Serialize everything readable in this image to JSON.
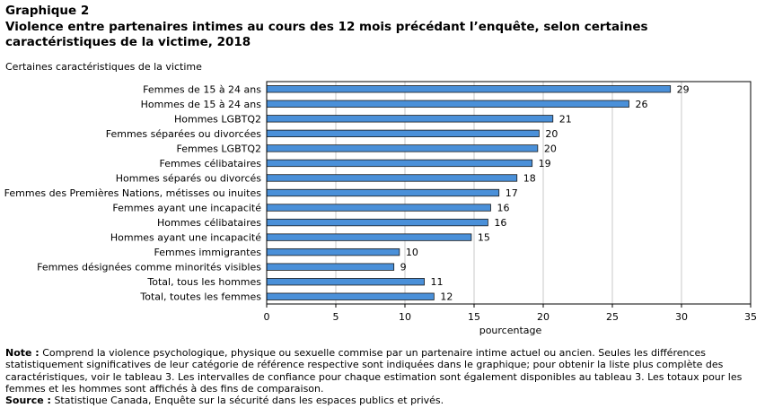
{
  "header": {
    "figure_label": "Graphique 2",
    "title": "Violence  entre partenaires intimes au cours des 12 mois précédant l’enquête, selon certaines caractéristiques de la victime, 2018"
  },
  "chart_data": {
    "type": "bar",
    "orientation": "horizontal",
    "ylabel": "Certaines caractéristiques de la victime",
    "xlabel": "pourcentage",
    "categories": [
      "Femmes de 15 à 24 ans",
      "Hommes de 15 à 24 ans",
      "Hommes LGBTQ2",
      "Femmes séparées ou divorcées",
      "Femmes LGBTQ2",
      "Femmes célibataires",
      "Hommes séparés ou divorcés",
      "Femmes des Premières Nations, métisses ou inuites",
      "Femmes ayant une incapacité",
      "Hommes célibataires",
      "Hommes ayant une incapacité",
      "Femmes immigrantes",
      "Femmes désignées comme minorités visibles",
      "Total, tous les hommes",
      "Total, toutes les femmes"
    ],
    "values": [
      29.2,
      26.2,
      20.7,
      19.7,
      19.6,
      19.2,
      18.1,
      16.8,
      16.2,
      16.0,
      14.8,
      9.6,
      9.2,
      11.4,
      12.1
    ],
    "value_labels": [
      "29",
      "26",
      "21",
      "20",
      "20",
      "19",
      "18",
      "17",
      "16",
      "16",
      "15",
      "10",
      "9",
      "11",
      "12"
    ],
    "xlim": [
      0,
      35
    ],
    "xticks": [
      0,
      5,
      10,
      15,
      20,
      25,
      30,
      35
    ],
    "grid": true,
    "bar_color": "#4a90d9"
  },
  "notes": {
    "note_label": "Note :",
    "note_text": " Comprend la violence psychologique, physique ou sexuelle commise par un partenaire intime actuel ou ancien. Seules les différences statistiquement significatives de leur catégorie de référence respective sont indiquées dans le graphique; pour obtenir la liste plus complète des caractéristiques, voir le tableau 3. Les intervalles de confiance pour chaque estimation sont également disponibles au tableau 3. Les totaux pour les femmes et les hommes sont affichés à des fins de comparaison.",
    "source_label": "Source :",
    "source_text": " Statistique Canada, Enquête sur la sécurité dans les espaces publics et privés."
  }
}
